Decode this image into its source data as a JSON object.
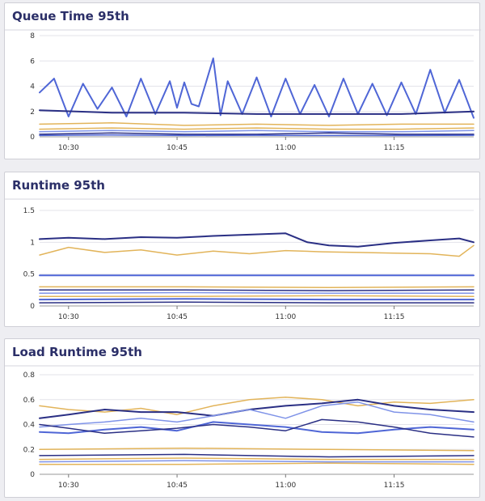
{
  "panels": [
    {
      "title": "Queue Time 95th"
    },
    {
      "title": "Runtime 95th"
    },
    {
      "title": "Load Runtime 95th"
    }
  ],
  "colors": {
    "navy": "#2a2f84",
    "blue": "#4f66d6",
    "lightblue": "#7f93e8",
    "gold": "#e2b45a"
  },
  "chart_data": [
    {
      "type": "line",
      "title": "Queue Time 95th",
      "xlabel": "",
      "ylabel": "",
      "x_ticks": [
        "10:30",
        "10:45",
        "11:00",
        "11:15"
      ],
      "x_range": [
        "10:26",
        "11:26"
      ],
      "y_ticks": [
        0,
        2,
        4,
        6,
        8
      ],
      "ylim": [
        0,
        8
      ],
      "grid": true,
      "legend": "none",
      "series": [
        {
          "color": "blue",
          "width": 2,
          "times": [
            "10:26",
            "10:28",
            "10:30",
            "10:32",
            "10:34",
            "10:36",
            "10:38",
            "10:40",
            "10:42",
            "10:44",
            "10:45",
            "10:46",
            "10:47",
            "10:48",
            "10:50",
            "10:51",
            "10:52",
            "10:54",
            "10:56",
            "10:58",
            "11:00",
            "11:02",
            "11:04",
            "11:06",
            "11:08",
            "11:10",
            "11:12",
            "11:14",
            "11:16",
            "11:18",
            "11:20",
            "11:22",
            "11:24",
            "11:26"
          ],
          "values": [
            3.5,
            4.6,
            1.6,
            4.2,
            2.2,
            3.9,
            1.6,
            4.6,
            1.8,
            4.4,
            2.3,
            4.3,
            2.6,
            2.4,
            6.2,
            1.7,
            4.4,
            1.8,
            4.7,
            1.6,
            4.6,
            1.8,
            4.1,
            1.6,
            4.6,
            1.8,
            4.2,
            1.7,
            4.3,
            1.8,
            5.3,
            1.9,
            4.5,
            1.5
          ]
        },
        {
          "color": "navy",
          "width": 2,
          "times": [
            "10:26",
            "10:36",
            "10:46",
            "10:56",
            "11:06",
            "11:16",
            "11:26"
          ],
          "values": [
            2.1,
            1.9,
            1.9,
            1.8,
            1.8,
            1.8,
            2.0
          ]
        },
        {
          "color": "gold",
          "width": 1.5,
          "times": [
            "10:26",
            "10:36",
            "10:46",
            "10:56",
            "11:06",
            "11:16",
            "11:26"
          ],
          "values": [
            1.0,
            1.1,
            0.9,
            1.0,
            0.9,
            1.0,
            1.0
          ]
        },
        {
          "color": "gold",
          "width": 1.5,
          "times": [
            "10:26",
            "10:36",
            "10:46",
            "10:56",
            "11:06",
            "11:16",
            "11:26"
          ],
          "values": [
            0.6,
            0.7,
            0.6,
            0.7,
            0.6,
            0.6,
            0.7
          ]
        },
        {
          "color": "lightblue",
          "width": 1.5,
          "times": [
            "10:26",
            "10:36",
            "10:46",
            "10:56",
            "11:06",
            "11:16",
            "11:26"
          ],
          "values": [
            0.4,
            0.5,
            0.4,
            0.5,
            0.4,
            0.4,
            0.5
          ]
        },
        {
          "color": "navy",
          "width": 1.5,
          "times": [
            "10:26",
            "10:36",
            "10:46",
            "10:56",
            "11:06",
            "11:16",
            "11:26"
          ],
          "values": [
            0.2,
            0.3,
            0.2,
            0.2,
            0.3,
            0.2,
            0.2
          ]
        },
        {
          "color": "blue",
          "width": 1.5,
          "times": [
            "10:26",
            "10:36",
            "10:46",
            "10:56",
            "11:06",
            "11:16",
            "11:26"
          ],
          "values": [
            0.1,
            0.15,
            0.1,
            0.12,
            0.1,
            0.1,
            0.12
          ]
        }
      ]
    },
    {
      "type": "line",
      "title": "Runtime 95th",
      "xlabel": "",
      "ylabel": "",
      "x_ticks": [
        "10:30",
        "10:45",
        "11:00",
        "11:15"
      ],
      "x_range": [
        "10:26",
        "11:26"
      ],
      "y_ticks": [
        0,
        0.5,
        1,
        1.5
      ],
      "ylim": [
        0,
        1.5
      ],
      "grid": true,
      "legend": "none",
      "series": [
        {
          "color": "navy",
          "width": 2,
          "times": [
            "10:26",
            "10:30",
            "10:35",
            "10:40",
            "10:45",
            "10:50",
            "10:55",
            "11:00",
            "11:03",
            "11:06",
            "11:10",
            "11:15",
            "11:20",
            "11:24",
            "11:26"
          ],
          "values": [
            1.05,
            1.07,
            1.05,
            1.08,
            1.07,
            1.1,
            1.12,
            1.14,
            1.0,
            0.95,
            0.93,
            0.99,
            1.03,
            1.06,
            1.0
          ]
        },
        {
          "color": "gold",
          "width": 1.5,
          "times": [
            "10:26",
            "10:30",
            "10:35",
            "10:40",
            "10:45",
            "10:50",
            "10:55",
            "11:00",
            "11:05",
            "11:10",
            "11:15",
            "11:20",
            "11:24",
            "11:26"
          ],
          "values": [
            0.8,
            0.92,
            0.84,
            0.88,
            0.8,
            0.86,
            0.82,
            0.87,
            0.85,
            0.84,
            0.83,
            0.82,
            0.78,
            0.95
          ]
        },
        {
          "color": "blue",
          "width": 2,
          "times": [
            "10:26",
            "10:46",
            "11:06",
            "11:26"
          ],
          "values": [
            0.48,
            0.48,
            0.48,
            0.48
          ]
        },
        {
          "color": "gold",
          "width": 1.5,
          "times": [
            "10:26",
            "10:46",
            "11:06",
            "11:26"
          ],
          "values": [
            0.3,
            0.3,
            0.29,
            0.3
          ]
        },
        {
          "color": "navy",
          "width": 1.5,
          "times": [
            "10:26",
            "10:46",
            "11:06",
            "11:26"
          ],
          "values": [
            0.25,
            0.25,
            0.24,
            0.25
          ]
        },
        {
          "color": "lightblue",
          "width": 1.5,
          "times": [
            "10:26",
            "10:46",
            "11:06",
            "11:26"
          ],
          "values": [
            0.2,
            0.21,
            0.2,
            0.2
          ]
        },
        {
          "color": "gold",
          "width": 1.5,
          "times": [
            "10:26",
            "10:46",
            "11:06",
            "11:26"
          ],
          "values": [
            0.15,
            0.15,
            0.16,
            0.15
          ]
        },
        {
          "color": "blue",
          "width": 2,
          "times": [
            "10:26",
            "10:46",
            "11:06",
            "11:26"
          ],
          "values": [
            0.1,
            0.11,
            0.1,
            0.1
          ]
        },
        {
          "color": "navy",
          "width": 1.5,
          "times": [
            "10:26",
            "10:46",
            "11:06",
            "11:26"
          ],
          "values": [
            0.05,
            0.06,
            0.05,
            0.05
          ]
        }
      ]
    },
    {
      "type": "line",
      "title": "Load Runtime 95th",
      "xlabel": "",
      "ylabel": "",
      "x_ticks": [
        "10:30",
        "10:45",
        "11:00",
        "11:15"
      ],
      "x_range": [
        "10:26",
        "11:26"
      ],
      "y_ticks": [
        0,
        0.2,
        0.4,
        0.6,
        0.8
      ],
      "ylim": [
        0,
        0.8
      ],
      "grid": true,
      "legend": "none",
      "series": [
        {
          "color": "gold",
          "width": 1.5,
          "times": [
            "10:26",
            "10:30",
            "10:35",
            "10:40",
            "10:45",
            "10:50",
            "10:55",
            "11:00",
            "11:05",
            "11:10",
            "11:15",
            "11:20",
            "11:26"
          ],
          "values": [
            0.55,
            0.52,
            0.5,
            0.53,
            0.48,
            0.55,
            0.6,
            0.62,
            0.6,
            0.55,
            0.58,
            0.57,
            0.6
          ]
        },
        {
          "color": "navy",
          "width": 2,
          "times": [
            "10:26",
            "10:30",
            "10:35",
            "10:40",
            "10:45",
            "10:50",
            "10:55",
            "11:00",
            "11:05",
            "11:10",
            "11:15",
            "11:20",
            "11:26"
          ],
          "values": [
            0.45,
            0.48,
            0.52,
            0.5,
            0.5,
            0.47,
            0.52,
            0.55,
            0.57,
            0.6,
            0.55,
            0.52,
            0.5
          ]
        },
        {
          "color": "lightblue",
          "width": 1.5,
          "times": [
            "10:26",
            "10:30",
            "10:35",
            "10:40",
            "10:45",
            "10:50",
            "10:55",
            "11:00",
            "11:05",
            "11:10",
            "11:15",
            "11:20",
            "11:26"
          ],
          "values": [
            0.38,
            0.4,
            0.42,
            0.45,
            0.42,
            0.47,
            0.52,
            0.45,
            0.55,
            0.58,
            0.5,
            0.48,
            0.42
          ]
        },
        {
          "color": "blue",
          "width": 2,
          "times": [
            "10:26",
            "10:30",
            "10:35",
            "10:40",
            "10:45",
            "10:50",
            "10:55",
            "11:00",
            "11:05",
            "11:10",
            "11:15",
            "11:20",
            "11:26"
          ],
          "values": [
            0.34,
            0.33,
            0.36,
            0.38,
            0.35,
            0.42,
            0.4,
            0.38,
            0.34,
            0.33,
            0.36,
            0.38,
            0.36
          ]
        },
        {
          "color": "navy",
          "width": 1.5,
          "times": [
            "10:26",
            "10:30",
            "10:35",
            "10:40",
            "10:45",
            "10:50",
            "10:55",
            "11:00",
            "11:05",
            "11:10",
            "11:15",
            "11:20",
            "11:26"
          ],
          "values": [
            0.4,
            0.37,
            0.33,
            0.35,
            0.37,
            0.4,
            0.38,
            0.35,
            0.44,
            0.42,
            0.38,
            0.33,
            0.3
          ]
        },
        {
          "color": "gold",
          "width": 1.5,
          "times": [
            "10:26",
            "10:46",
            "11:06",
            "11:26"
          ],
          "values": [
            0.2,
            0.21,
            0.2,
            0.19
          ]
        },
        {
          "color": "navy",
          "width": 1.5,
          "times": [
            "10:26",
            "10:46",
            "11:06",
            "11:26"
          ],
          "values": [
            0.15,
            0.16,
            0.14,
            0.15
          ]
        },
        {
          "color": "gold",
          "width": 1.5,
          "times": [
            "10:26",
            "10:46",
            "11:06",
            "11:26"
          ],
          "values": [
            0.12,
            0.13,
            0.12,
            0.12
          ]
        },
        {
          "color": "lightblue",
          "width": 1.5,
          "times": [
            "10:26",
            "10:46",
            "11:06",
            "11:26"
          ],
          "values": [
            0.1,
            0.11,
            0.1,
            0.1
          ]
        },
        {
          "color": "gold",
          "width": 1.5,
          "times": [
            "10:26",
            "10:46",
            "11:06",
            "11:26"
          ],
          "values": [
            0.08,
            0.08,
            0.09,
            0.08
          ]
        }
      ]
    }
  ]
}
